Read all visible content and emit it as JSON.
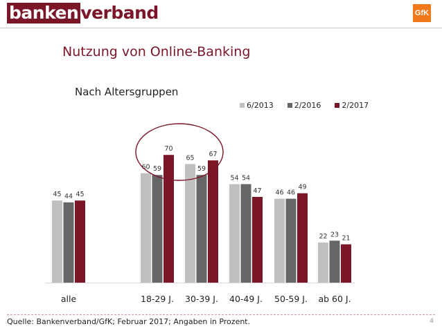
{
  "brand": {
    "logo_highlight": "banken",
    "logo_rest": "verband",
    "partner_logo": "GfK"
  },
  "page_title": "Nutzung von Online-Banking",
  "page_number": "4",
  "footer": {
    "source": "Quelle: Bankenverband/GfK; Februar 2017; Angaben in Prozent."
  },
  "colors": {
    "accent": "#7b1528",
    "series": [
      "#c0c0c0",
      "#666666",
      "#7b1528"
    ],
    "highlight_circle": "#7b1528"
  },
  "chart_data": {
    "type": "bar",
    "title": "Nach Altersgruppen",
    "categories": [
      "alle",
      "18-29 J.",
      "30-39 J.",
      "40-49 J.",
      "50-59 J.",
      "ab 60 J."
    ],
    "series": [
      {
        "name": "6/2013",
        "values": [
          45,
          60,
          65,
          54,
          46,
          22
        ]
      },
      {
        "name": "2/2016",
        "values": [
          44,
          59,
          59,
          54,
          46,
          23
        ]
      },
      {
        "name": "2/2017",
        "values": [
          45,
          70,
          67,
          47,
          49,
          21
        ]
      }
    ],
    "ylim": [
      0,
      100
    ],
    "grid": false,
    "legend_position": "top-right",
    "data_labels": true,
    "highlighted_categories": [
      "18-29 J.",
      "30-39 J."
    ]
  }
}
